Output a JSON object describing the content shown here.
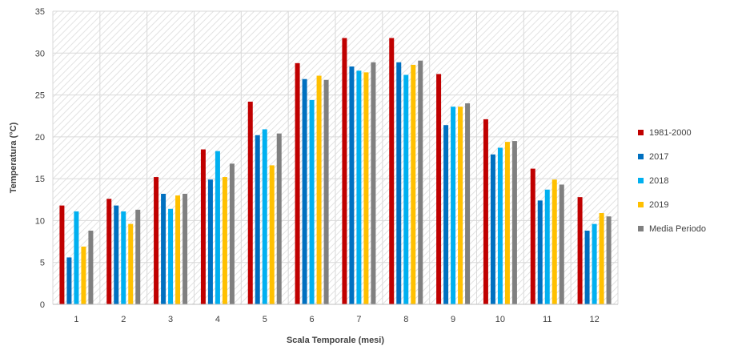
{
  "chart_data": {
    "type": "bar",
    "xlabel": "Scala Temporale (mesi)",
    "ylabel": "Temperatura (°C)",
    "ylim": [
      0,
      35
    ],
    "ytick_step": 5,
    "grid": true,
    "legend_position": "right",
    "categories": [
      "1",
      "2",
      "3",
      "4",
      "5",
      "6",
      "7",
      "8",
      "9",
      "10",
      "11",
      "12"
    ],
    "series": [
      {
        "name": "1981-2000",
        "color": "#c00000",
        "values": [
          11.8,
          12.6,
          15.2,
          18.5,
          24.2,
          28.8,
          31.8,
          31.8,
          27.5,
          22.1,
          16.2,
          12.8
        ]
      },
      {
        "name": "2017",
        "color": "#0070c0",
        "values": [
          5.6,
          11.8,
          13.2,
          14.9,
          20.2,
          26.9,
          28.4,
          28.9,
          21.4,
          17.9,
          12.4,
          8.8
        ]
      },
      {
        "name": "2018",
        "color": "#00b0f0",
        "values": [
          11.1,
          11.1,
          11.4,
          18.3,
          20.9,
          24.4,
          27.9,
          27.4,
          23.6,
          18.7,
          13.7,
          9.6
        ]
      },
      {
        "name": "2019",
        "color": "#ffc000",
        "values": [
          6.9,
          9.6,
          13.0,
          15.2,
          16.6,
          27.3,
          27.7,
          28.6,
          23.6,
          19.4,
          14.9,
          10.9
        ]
      },
      {
        "name": "Media Periodo",
        "color": "#808080",
        "values": [
          8.8,
          11.3,
          13.2,
          16.8,
          20.4,
          26.8,
          28.9,
          29.1,
          24.0,
          19.5,
          14.3,
          10.5
        ]
      }
    ]
  }
}
